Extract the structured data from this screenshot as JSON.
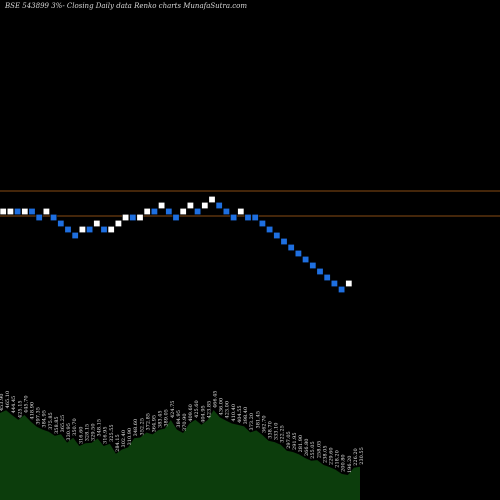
{
  "title": "BSE 543899 3%-  Closing Daily data  Renko  charts MunafaSutra.com",
  "chart_data": {
    "type": "renko",
    "title": "BSE 543899 3%-  Closing Daily data  Renko  charts MunafaSutra.com",
    "brick_size_pct": 3,
    "colors": {
      "background": "#000000",
      "up_brick": "#ffffff",
      "down_brick": "#1e6fe0",
      "reference_line": "#b5651d",
      "volume_fill": "#0c3d0c",
      "volume_text": "#e8e8e8"
    },
    "reference_levels": [
      1,
      0.92
    ],
    "bricks": [
      {
        "level": 0,
        "dir": "up"
      },
      {
        "level": 0,
        "dir": "up"
      },
      {
        "level": 0,
        "dir": "down"
      },
      {
        "level": 0,
        "dir": "up"
      },
      {
        "level": 0,
        "dir": "down"
      },
      {
        "level": -1,
        "dir": "down"
      },
      {
        "level": 0,
        "dir": "up"
      },
      {
        "level": -1,
        "dir": "down"
      },
      {
        "level": -2,
        "dir": "down"
      },
      {
        "level": -3,
        "dir": "down"
      },
      {
        "level": -4,
        "dir": "down"
      },
      {
        "level": -3,
        "dir": "up"
      },
      {
        "level": -3,
        "dir": "down"
      },
      {
        "level": -2,
        "dir": "up"
      },
      {
        "level": -3,
        "dir": "down"
      },
      {
        "level": -3,
        "dir": "up"
      },
      {
        "level": -2,
        "dir": "up"
      },
      {
        "level": -1,
        "dir": "up"
      },
      {
        "level": -1,
        "dir": "down"
      },
      {
        "level": -1,
        "dir": "up"
      },
      {
        "level": 0,
        "dir": "up"
      },
      {
        "level": 0,
        "dir": "down"
      },
      {
        "level": 1,
        "dir": "up"
      },
      {
        "level": 0,
        "dir": "down"
      },
      {
        "level": -1,
        "dir": "down"
      },
      {
        "level": 0,
        "dir": "up"
      },
      {
        "level": 1,
        "dir": "up"
      },
      {
        "level": 0,
        "dir": "down"
      },
      {
        "level": 1,
        "dir": "up"
      },
      {
        "level": 2,
        "dir": "up"
      },
      {
        "level": 1,
        "dir": "down"
      },
      {
        "level": 0,
        "dir": "down"
      },
      {
        "level": -1,
        "dir": "down"
      },
      {
        "level": 0,
        "dir": "up"
      },
      {
        "level": -1,
        "dir": "down"
      },
      {
        "level": -1,
        "dir": "down"
      },
      {
        "level": -2,
        "dir": "down"
      },
      {
        "level": -3,
        "dir": "down"
      },
      {
        "level": -4,
        "dir": "down"
      },
      {
        "level": -5,
        "dir": "down"
      },
      {
        "level": -6,
        "dir": "down"
      },
      {
        "level": -7,
        "dir": "down"
      },
      {
        "level": -8,
        "dir": "down"
      },
      {
        "level": -9,
        "dir": "down"
      },
      {
        "level": -10,
        "dir": "down"
      },
      {
        "level": -11,
        "dir": "down"
      },
      {
        "level": -12,
        "dir": "down"
      },
      {
        "level": -13,
        "dir": "down"
      },
      {
        "level": -12,
        "dir": "up"
      }
    ],
    "volume_labels": [
      "453.90",
      "465.10",
      "444.45",
      "425.15",
      "445.70",
      "418.90",
      "397.35",
      "384.95",
      "375.85",
      "358.85",
      "365.25",
      "330.95",
      "350.70",
      "316.60",
      "328.15",
      "329.50",
      "348.15",
      "316.95",
      "325.55",
      "284.15",
      "302.40",
      "310.90",
      "348.60",
      "352.25",
      "372.85",
      "364.95",
      "383.45",
      "389.05",
      "424.75",
      "384.95",
      "370.90",
      "409.60",
      "425.60",
      "404.95",
      "423.85",
      "466.45",
      "436.00",
      "423.00",
      "410.40",
      "404.55",
      "398.40",
      "373.20",
      "381.45",
      "362.70",
      "338.70",
      "333.10",
      "322.25",
      "297.05",
      "291.95",
      "281.90",
      "266.80",
      "255.05",
      "258.05",
      "238.05",
      "229.60",
      "218.20",
      "200.80",
      "196.20",
      "226.20",
      "230.55"
    ]
  }
}
